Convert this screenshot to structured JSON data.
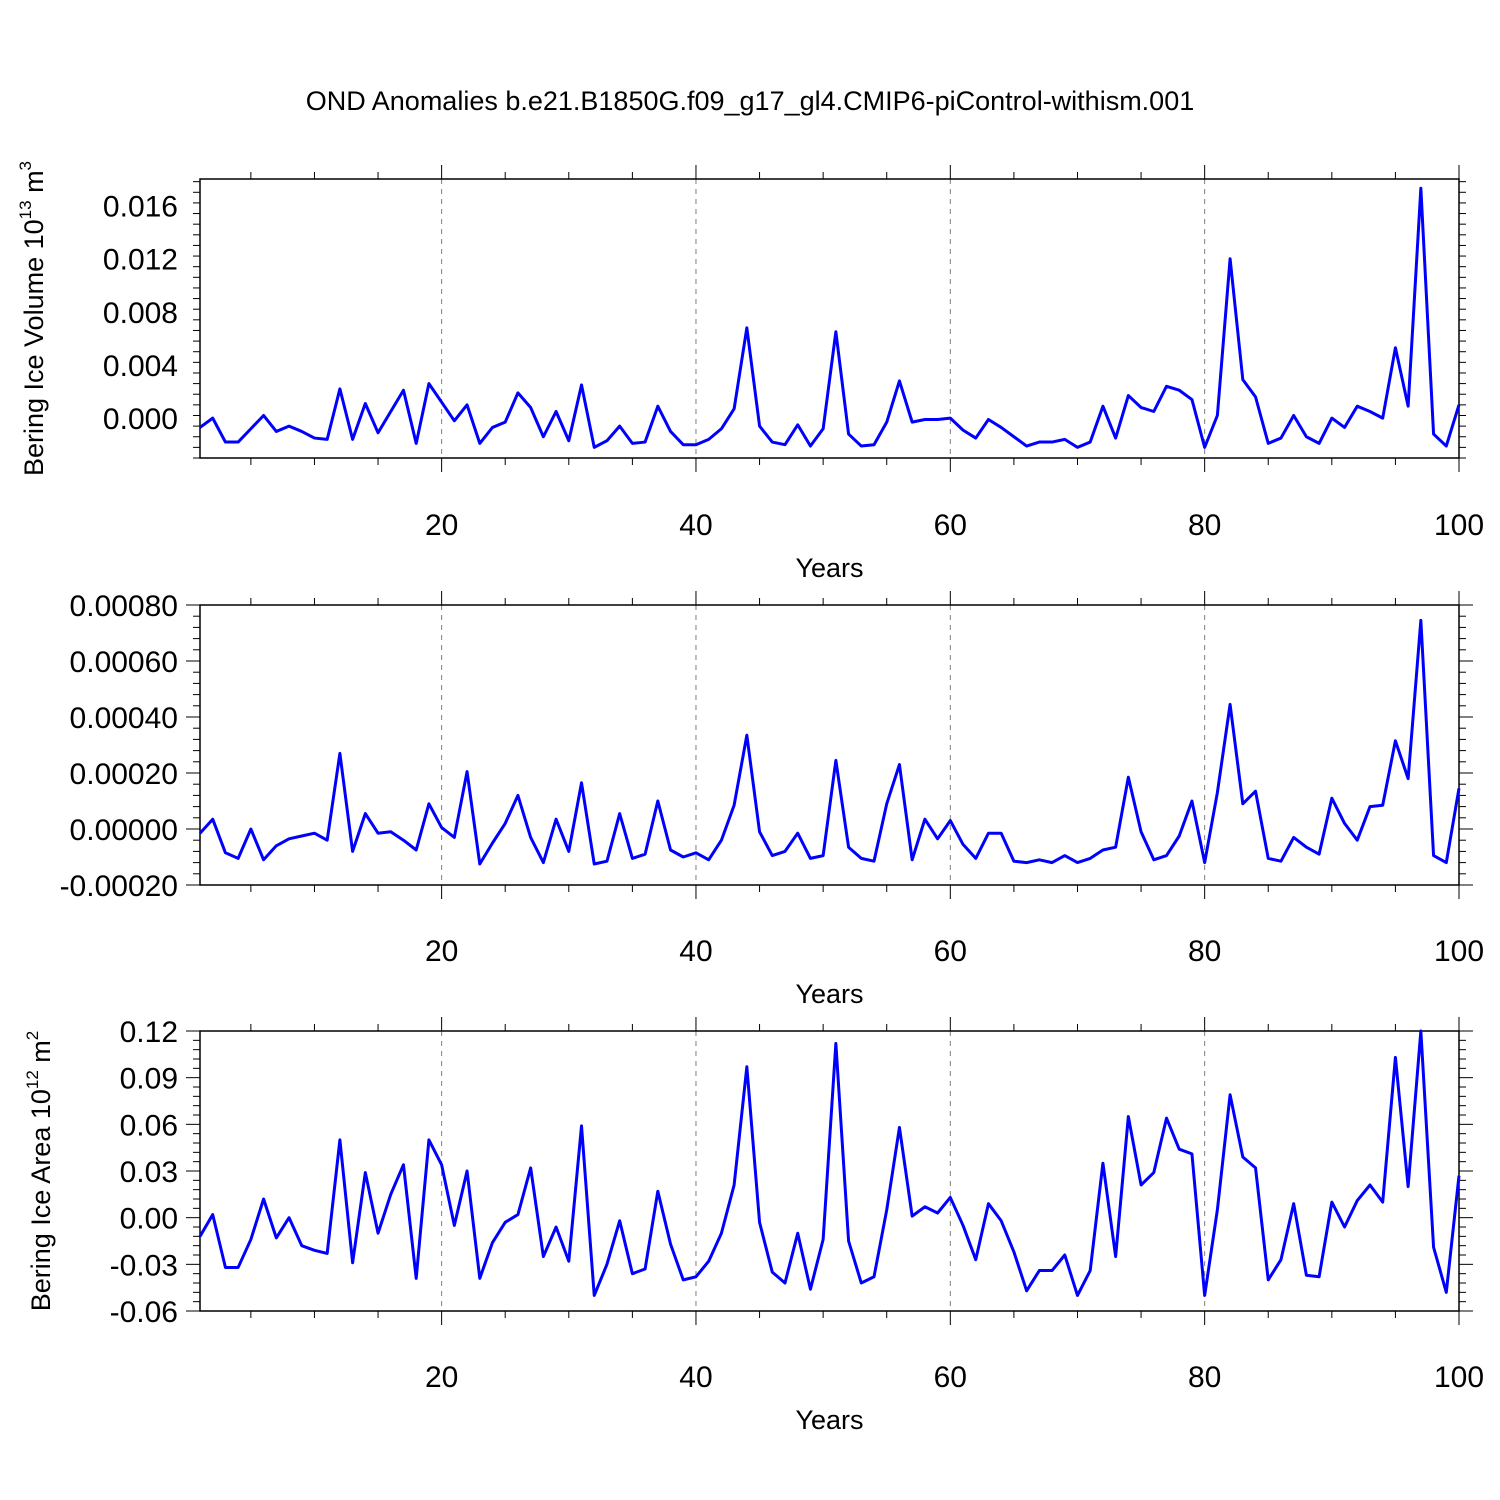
{
  "title": "OND Anomalies b.e21.B1850G.f09_g17_gl4.CMIP6-piControl-withism.001",
  "colors": {
    "line": "#0000ff",
    "axis": "#000000",
    "grid": "#7f7f7f"
  },
  "chart_data": [
    {
      "type": "line",
      "ylabel_main": "Bering Ice Volume 10",
      "ylabel_exp": "13",
      "ylabel_unit": " m",
      "ylabel_unit_exp": "3",
      "xlabel": "Years",
      "xlim": [
        1,
        100
      ],
      "ylim": [
        -0.003,
        0.018
      ],
      "xticks": [
        "20",
        "40",
        "60",
        "80",
        "100"
      ],
      "yticks": [
        "0.000",
        "0.004",
        "0.008",
        "0.012",
        "0.016"
      ],
      "x_start": 1,
      "values": [
        -0.0007,
        0.0,
        -0.0018,
        -0.0018,
        -0.0008,
        0.0002,
        -0.001,
        -0.0006,
        -0.001,
        -0.0015,
        -0.0016,
        0.0022,
        -0.0016,
        0.0011,
        -0.0011,
        0.0005,
        0.0021,
        -0.0019,
        0.0026,
        0.0012,
        -0.0002,
        0.001,
        -0.0019,
        -0.0007,
        -0.0003,
        0.0019,
        0.0008,
        -0.0014,
        0.0005,
        -0.0017,
        0.0025,
        -0.0022,
        -0.0017,
        -0.0006,
        -0.0019,
        -0.0018,
        0.0009,
        -0.001,
        -0.002,
        -0.002,
        -0.0016,
        -0.0008,
        0.0007,
        0.0068,
        -0.0006,
        -0.0018,
        -0.002,
        -0.0005,
        -0.0021,
        -0.0008,
        0.0065,
        -0.0012,
        -0.0021,
        -0.002,
        -0.0003,
        0.0028,
        -0.0003,
        -0.0001,
        -0.0001,
        0.0,
        -0.0009,
        -0.0015,
        -0.0001,
        -0.0007,
        -0.0014,
        -0.0021,
        -0.0018,
        -0.0018,
        -0.0016,
        -0.0022,
        -0.0018,
        0.0009,
        -0.0015,
        0.0017,
        0.0008,
        0.0005,
        0.0024,
        0.0021,
        0.0014,
        -0.0022,
        0.0002,
        0.012,
        0.0029,
        0.0016,
        -0.0019,
        -0.0015,
        0.0002,
        -0.0014,
        -0.0019,
        0.0,
        -0.0007,
        0.0009,
        0.0005,
        0.0,
        0.0053,
        0.0009,
        0.0173,
        -0.0012,
        -0.0021,
        0.001
      ]
    },
    {
      "type": "line",
      "ylabel_main": "",
      "ylabel_exp": "",
      "ylabel_unit": "",
      "ylabel_unit_exp": "",
      "xlabel": "Years",
      "xlim": [
        1,
        100
      ],
      "ylim": [
        -0.0002,
        0.0008
      ],
      "xticks": [
        "20",
        "40",
        "60",
        "80",
        "100"
      ],
      "yticks": [
        "-0.00020",
        "0.00000",
        "0.00020",
        "0.00040",
        "0.00060",
        "0.00080"
      ],
      "x_start": 1,
      "values": [
        -1.5e-05,
        3.5e-05,
        -8.5e-05,
        -0.000105,
        0.0,
        -0.00011,
        -6e-05,
        -3.5e-05,
        -2.5e-05,
        -1.5e-05,
        -4e-05,
        0.00027,
        -8e-05,
        5.5e-05,
        -1.5e-05,
        -1e-05,
        -4e-05,
        -7.5e-05,
        9e-05,
        5e-06,
        -3e-05,
        0.000205,
        -0.000125,
        -5e-05,
        2e-05,
        0.00012,
        -3e-05,
        -0.00012,
        3.5e-05,
        -8e-05,
        0.000165,
        -0.000125,
        -0.000115,
        5.5e-05,
        -0.000105,
        -9e-05,
        0.0001,
        -7.5e-05,
        -0.0001,
        -8.5e-05,
        -0.00011,
        -4e-05,
        8.5e-05,
        0.000335,
        -1e-05,
        -9.5e-05,
        -8e-05,
        -1.5e-05,
        -0.000105,
        -9.5e-05,
        0.000245,
        -6.5e-05,
        -0.000105,
        -0.000115,
        9e-05,
        0.00023,
        -0.00011,
        3.5e-05,
        -3.5e-05,
        3e-05,
        -5.5e-05,
        -0.000105,
        -1.5e-05,
        -1.5e-05,
        -0.000115,
        -0.00012,
        -0.00011,
        -0.00012,
        -9.5e-05,
        -0.00012,
        -0.000105,
        -7.5e-05,
        -6.5e-05,
        0.000185,
        -1e-05,
        -0.00011,
        -9.5e-05,
        -2.5e-05,
        0.0001,
        -0.00012,
        0.00013,
        0.000445,
        9e-05,
        0.000135,
        -0.000105,
        -0.000115,
        -3e-05,
        -6.5e-05,
        -9e-05,
        0.00011,
        2e-05,
        -4e-05,
        8e-05,
        8.5e-05,
        0.000315,
        0.00018,
        0.000745,
        -9.5e-05,
        -0.00012,
        0.000145
      ]
    },
    {
      "type": "line",
      "ylabel_main": "Bering Ice Area 10",
      "ylabel_exp": "12",
      "ylabel_unit": " m",
      "ylabel_unit_exp": "2",
      "xlabel": "Years",
      "xlim": [
        1,
        100
      ],
      "ylim": [
        -0.06,
        0.12
      ],
      "xticks": [
        "20",
        "40",
        "60",
        "80",
        "100"
      ],
      "yticks": [
        "-0.06",
        "-0.03",
        "0.00",
        "0.03",
        "0.06",
        "0.09",
        "0.12"
      ],
      "x_start": 1,
      "values": [
        -0.012,
        0.002,
        -0.032,
        -0.032,
        -0.014,
        0.012,
        -0.013,
        0.0,
        -0.018,
        -0.021,
        -0.023,
        0.05,
        -0.029,
        0.029,
        -0.01,
        0.015,
        0.034,
        -0.039,
        0.05,
        0.034,
        -0.005,
        0.03,
        -0.039,
        -0.016,
        -0.003,
        0.002,
        0.032,
        -0.025,
        -0.006,
        -0.028,
        0.059,
        -0.05,
        -0.03,
        -0.002,
        -0.036,
        -0.033,
        0.017,
        -0.017,
        -0.04,
        -0.038,
        -0.028,
        -0.01,
        0.021,
        0.097,
        -0.003,
        -0.035,
        -0.042,
        -0.01,
        -0.046,
        -0.014,
        0.112,
        -0.015,
        -0.042,
        -0.038,
        0.005,
        0.058,
        0.001,
        0.007,
        0.003,
        0.013,
        -0.005,
        -0.027,
        0.009,
        -0.002,
        -0.022,
        -0.047,
        -0.034,
        -0.034,
        -0.024,
        -0.05,
        -0.034,
        0.035,
        -0.025,
        0.065,
        0.021,
        0.029,
        0.064,
        0.044,
        0.041,
        -0.05,
        0.005,
        0.079,
        0.039,
        0.032,
        -0.04,
        -0.027,
        0.009,
        -0.037,
        -0.038,
        0.01,
        -0.006,
        0.011,
        0.021,
        0.01,
        0.103,
        0.02,
        0.12,
        -0.019,
        -0.048,
        0.027
      ]
    }
  ]
}
